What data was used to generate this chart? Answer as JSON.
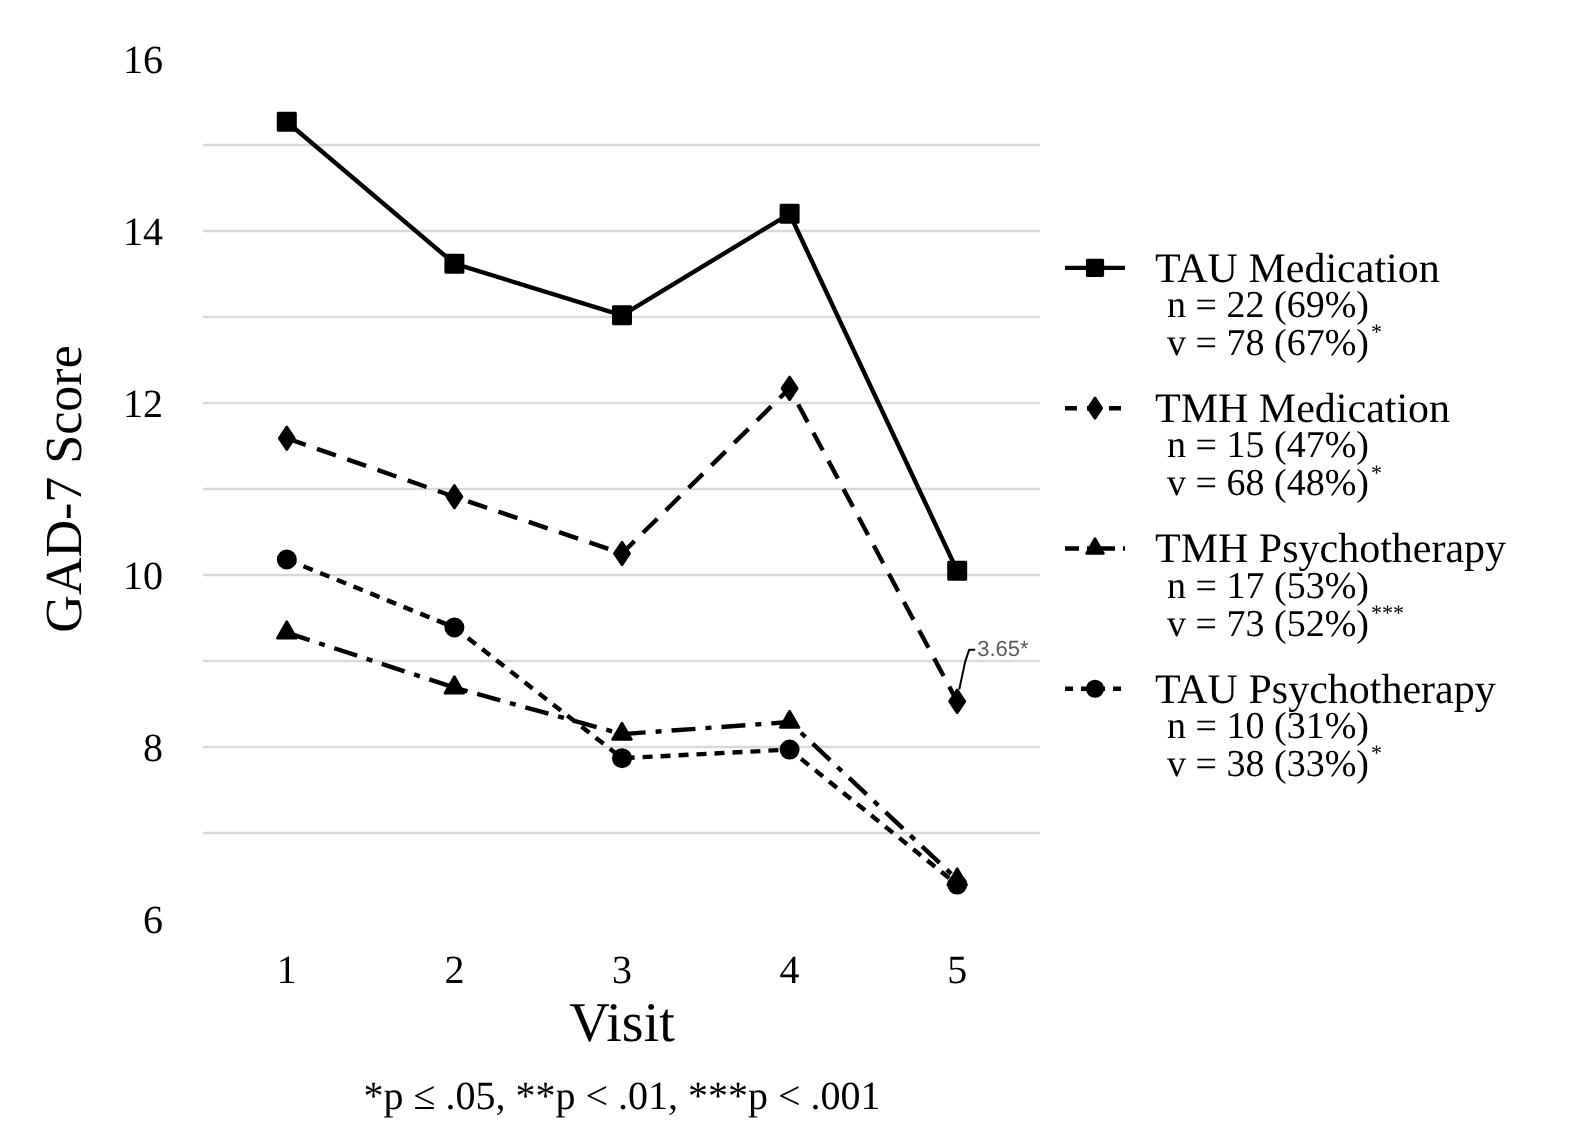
{
  "chart_data": {
    "type": "line",
    "xlabel": "Visit",
    "ylabel": "GAD-7 Score",
    "categories": [
      "1",
      "2",
      "3",
      "4",
      "5"
    ],
    "ylim": [
      6,
      16
    ],
    "yticks": [
      6,
      {
        "value": 7,
        "label": null
      },
      8,
      {
        "value": 9,
        "label": null
      },
      10,
      {
        "value": 11,
        "label": null
      },
      12,
      {
        "value": 13,
        "label": null
      },
      14,
      {
        "value": 15,
        "label": null
      },
      16
    ],
    "grid": "y",
    "legend": "right",
    "series": [
      {
        "name": "TAU Medication",
        "color": "#000000",
        "marker": "square",
        "line_style": "solid",
        "values": [
          15.27,
          13.62,
          13.02,
          14.2,
          10.05
        ]
      },
      {
        "name": "TMH Medication",
        "color": "#000000",
        "marker": "diamond",
        "line_style": "dashed",
        "values": [
          11.59,
          10.91,
          10.25,
          12.17,
          8.53
        ]
      },
      {
        "name": "TMH Psychotherapy",
        "color": "#000000",
        "marker": "triangle",
        "line_style": "dashdot",
        "values": [
          9.33,
          8.69,
          8.15,
          8.29,
          6.46
        ]
      },
      {
        "name": "TAU Psychotherapy",
        "color": "#000000",
        "marker": "circle",
        "line_style": "dotted",
        "values": [
          10.18,
          9.39,
          7.87,
          7.97,
          6.4
        ]
      }
    ],
    "annotations": [
      "n = 22 (69%)",
      "v = 78 (67%)$^{*}$",
      "n = 15 (47%)",
      "v = 68 (48%)$^{*}$",
      "n = 17 (53%)",
      "v = 73 (52%)$^{***}$",
      "n = 10 (31%)",
      "v = 38 (33%)$^{*}$",
      {
        "text": "3.65*",
        "x": "5",
        "y": 8.53
      },
      "*p ≤ .05, **p < .01, ***p < .001"
    ]
  }
}
